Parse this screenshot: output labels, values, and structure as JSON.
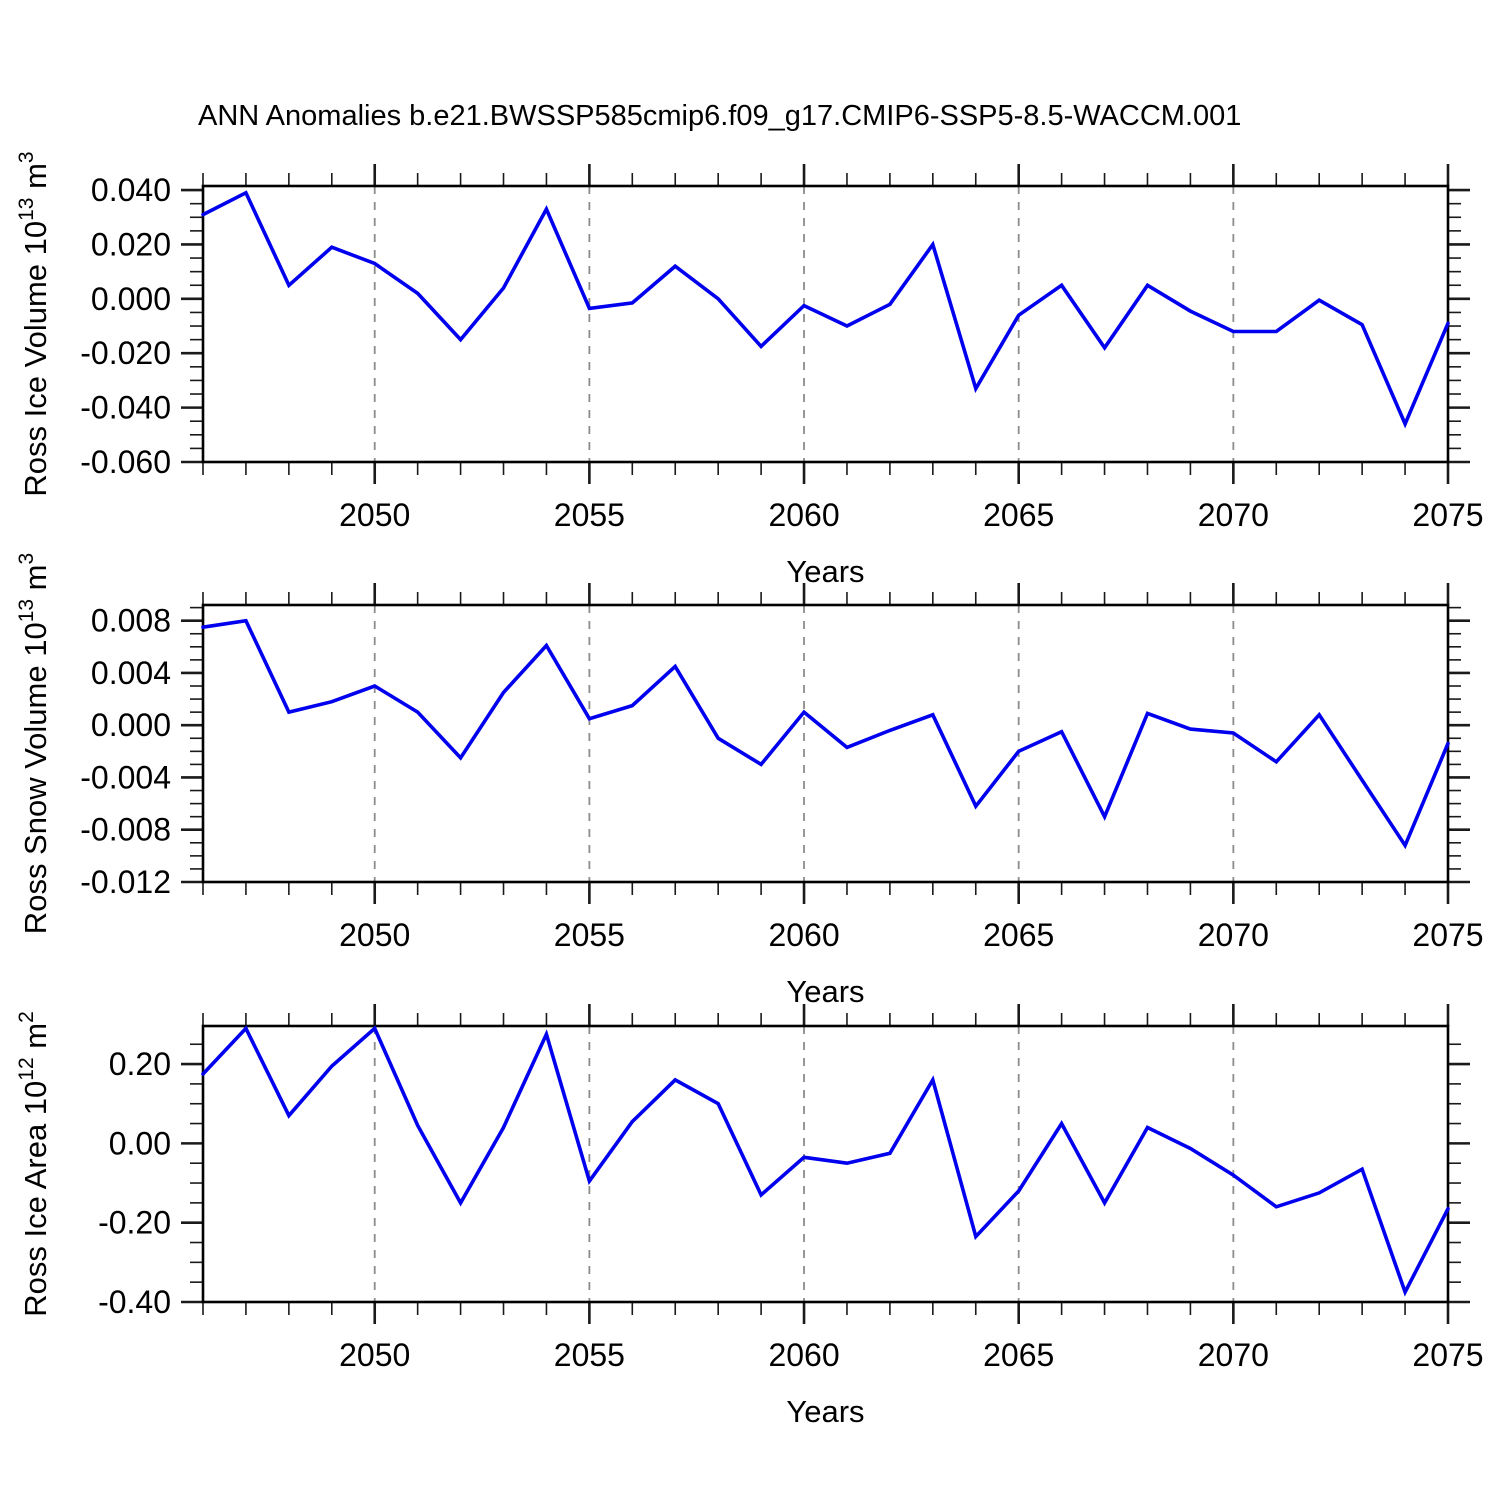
{
  "title": "ANN Anomalies b.e21.BWSSP585cmip6.f09_g17.CMIP6-SSP5-8.5-WACCM.001",
  "colors": {
    "line": "#0000EE",
    "grid": "#8c8c8c",
    "frame": "#000000",
    "tick": "#1a1a1a"
  },
  "chart_data": [
    {
      "type": "line",
      "title": "ANN Anomalies b.e21.BWSSP585cmip6.f09_g17.CMIP6-SSP5-8.5-WACCM.001",
      "xlabel": "Years",
      "x": [
        2046,
        2047,
        2048,
        2049,
        2050,
        2051,
        2052,
        2053,
        2054,
        2055,
        2056,
        2057,
        2058,
        2059,
        2060,
        2061,
        2062,
        2063,
        2064,
        2065,
        2066,
        2067,
        2068,
        2069,
        2070,
        2071,
        2072,
        2073,
        2074,
        2075
      ],
      "xlim": [
        2046,
        2075
      ],
      "xticks": [
        {
          "v": 2050,
          "label": "2050"
        },
        {
          "v": 2055,
          "label": "2055"
        },
        {
          "v": 2060,
          "label": "2060"
        },
        {
          "v": 2065,
          "label": "2065"
        },
        {
          "v": 2070,
          "label": "2070"
        },
        {
          "v": 2075,
          "label": "2075"
        }
      ],
      "xminor_step": 1,
      "grid": "vertical-dashed",
      "legend_position": "none",
      "series": [
        {
          "name": "Ross Ice Volume",
          "ylabel": "Ross Ice Volume 10^13 m^3",
          "ylabel_parts": [
            [
              "Ross Ice Volume 10",
              false
            ],
            [
              "13",
              true
            ],
            [
              " m",
              false
            ],
            [
              "3",
              true
            ]
          ],
          "ylim": [
            -0.06,
            0.0415
          ],
          "yticks": [
            {
              "v": 0.04,
              "label": "0.040"
            },
            {
              "v": 0.02,
              "label": "0.020"
            },
            {
              "v": 0.0,
              "label": "0.000"
            },
            {
              "v": -0.02,
              "label": "-0.020"
            },
            {
              "v": -0.04,
              "label": "-0.040"
            },
            {
              "v": -0.06,
              "label": "-0.060"
            }
          ],
          "yminor_step": 0.005,
          "values": [
            0.031,
            0.039,
            0.005,
            0.019,
            0.013,
            0.002,
            -0.015,
            0.004,
            0.033,
            -0.0035,
            -0.0015,
            0.012,
            0.0,
            -0.0175,
            -0.0025,
            -0.01,
            -0.002,
            0.02,
            -0.033,
            -0.006,
            0.005,
            -0.018,
            0.005,
            -0.0045,
            -0.012,
            -0.012,
            -0.0005,
            -0.0095,
            -0.046,
            -0.009
          ]
        },
        {
          "name": "Ross Snow Volume",
          "ylabel": "Ross Snow Volume 10^13 m^3",
          "ylabel_parts": [
            [
              "Ross Snow Volume 10",
              false
            ],
            [
              "13",
              true
            ],
            [
              " m",
              false
            ],
            [
              "3",
              true
            ]
          ],
          "ylim": [
            -0.012,
            0.0092
          ],
          "yticks": [
            {
              "v": 0.008,
              "label": "0.008"
            },
            {
              "v": 0.004,
              "label": "0.004"
            },
            {
              "v": 0.0,
              "label": "0.000"
            },
            {
              "v": -0.004,
              "label": "-0.004"
            },
            {
              "v": -0.008,
              "label": "-0.008"
            },
            {
              "v": -0.012,
              "label": "-0.012"
            }
          ],
          "yminor_step": 0.001,
          "values": [
            0.0075,
            0.008,
            0.001,
            0.0018,
            0.003,
            0.001,
            -0.0025,
            0.0025,
            0.0061,
            0.0005,
            0.0015,
            0.0045,
            -0.001,
            -0.003,
            0.001,
            -0.0017,
            -0.0004,
            0.0008,
            -0.0062,
            -0.002,
            -0.0005,
            -0.007,
            0.0009,
            -0.0003,
            -0.0006,
            -0.0028,
            0.0008,
            -0.0042,
            -0.0092,
            -0.0014
          ]
        },
        {
          "name": "Ross Ice Area",
          "ylabel": "Ross Ice Area 10^12 m^2",
          "ylabel_parts": [
            [
              "Ross Ice Area 10",
              false
            ],
            [
              "12",
              true
            ],
            [
              " m",
              false
            ],
            [
              "2",
              true
            ]
          ],
          "ylim": [
            -0.4,
            0.296
          ],
          "yticks": [
            {
              "v": 0.2,
              "label": "0.20"
            },
            {
              "v": 0.0,
              "label": "0.00"
            },
            {
              "v": -0.2,
              "label": "-0.20"
            },
            {
              "v": -0.4,
              "label": "-0.40"
            }
          ],
          "yminor_step": 0.05,
          "values": [
            0.175,
            0.29,
            0.07,
            0.195,
            0.29,
            0.045,
            -0.15,
            0.04,
            0.275,
            -0.095,
            0.055,
            0.16,
            0.1,
            -0.13,
            -0.035,
            -0.05,
            -0.025,
            0.16,
            -0.235,
            -0.12,
            0.05,
            -0.15,
            0.04,
            -0.013,
            -0.08,
            -0.16,
            -0.125,
            -0.065,
            -0.375,
            -0.165
          ]
        }
      ]
    }
  ]
}
